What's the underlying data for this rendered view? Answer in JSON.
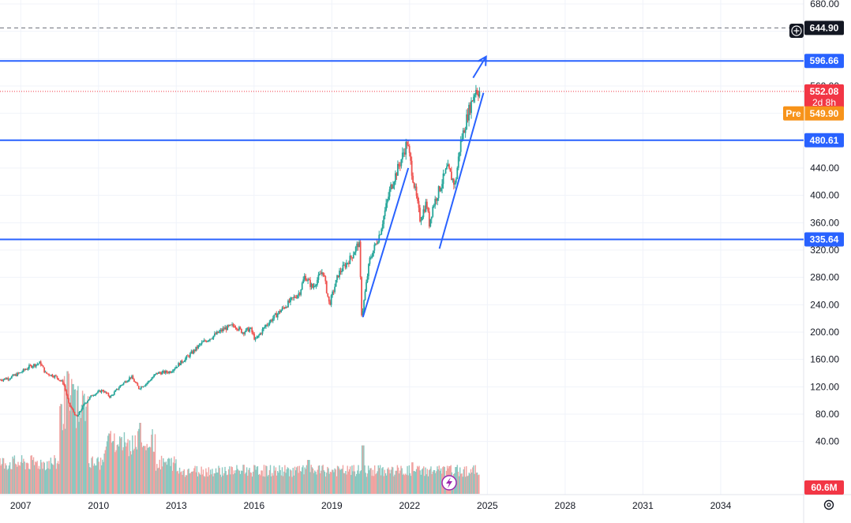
{
  "colors": {
    "up": "#26a69a",
    "down": "#ef5350",
    "vol_up": "#89c8c0",
    "vol_down": "#f0a3a1",
    "hline": "#2962ff",
    "grid": "#f0f3fa",
    "axis_text": "#131722",
    "last_price": "#f23645",
    "pre_price": "#f7931a",
    "crosshair_tag": "#131722",
    "lightning": "#9c27b0"
  },
  "chart_data": {
    "type": "candlestick",
    "title": "",
    "xlabel": "",
    "ylabel": "",
    "ylim": [
      -10,
      680
    ],
    "xlim": [
      2006.2,
      2037.2
    ],
    "x_ticks": [
      "2007",
      "2010",
      "2013",
      "2016",
      "2019",
      "2022",
      "2025",
      "2028",
      "2031",
      "2034"
    ],
    "x_tick_values": [
      2007,
      2010,
      2013,
      2016,
      2019,
      2022,
      2025,
      2028,
      2031,
      2034
    ],
    "y_ticks": [
      "40.00",
      "80.00",
      "120.00",
      "160.00",
      "200.00",
      "240.00",
      "280.00",
      "320.00",
      "360.00",
      "400.00",
      "440.00",
      "560.00",
      "680.00"
    ],
    "y_tick_values": [
      40,
      80,
      120,
      160,
      200,
      240,
      280,
      320,
      360,
      400,
      440,
      560,
      680
    ],
    "price_path": [
      [
        2006.2,
        130
      ],
      [
        2006.6,
        133
      ],
      [
        2007.0,
        140
      ],
      [
        2007.4,
        150
      ],
      [
        2007.8,
        155
      ],
      [
        2008.0,
        140
      ],
      [
        2008.4,
        135
      ],
      [
        2008.7,
        125
      ],
      [
        2008.9,
        95
      ],
      [
        2009.1,
        82
      ],
      [
        2009.2,
        75
      ],
      [
        2009.5,
        95
      ],
      [
        2009.8,
        108
      ],
      [
        2010.2,
        115
      ],
      [
        2010.5,
        105
      ],
      [
        2010.9,
        122
      ],
      [
        2011.3,
        135
      ],
      [
        2011.6,
        118
      ],
      [
        2011.9,
        125
      ],
      [
        2012.3,
        140
      ],
      [
        2012.8,
        142
      ],
      [
        2013.2,
        155
      ],
      [
        2013.6,
        168
      ],
      [
        2014.0,
        183
      ],
      [
        2014.5,
        195
      ],
      [
        2014.9,
        205
      ],
      [
        2015.3,
        210
      ],
      [
        2015.6,
        200
      ],
      [
        2015.9,
        205
      ],
      [
        2016.1,
        188
      ],
      [
        2016.5,
        210
      ],
      [
        2016.9,
        225
      ],
      [
        2017.3,
        240
      ],
      [
        2017.8,
        258
      ],
      [
        2018.0,
        282
      ],
      [
        2018.3,
        265
      ],
      [
        2018.7,
        290
      ],
      [
        2018.95,
        240
      ],
      [
        2019.3,
        285
      ],
      [
        2019.8,
        310
      ],
      [
        2020.1,
        332
      ],
      [
        2020.2,
        222
      ],
      [
        2020.5,
        305
      ],
      [
        2020.9,
        345
      ],
      [
        2021.3,
        410
      ],
      [
        2021.7,
        450
      ],
      [
        2021.95,
        478
      ],
      [
        2022.2,
        420
      ],
      [
        2022.45,
        365
      ],
      [
        2022.7,
        390
      ],
      [
        2022.8,
        358
      ],
      [
        2022.95,
        385
      ],
      [
        2023.2,
        410
      ],
      [
        2023.5,
        440
      ],
      [
        2023.8,
        415
      ],
      [
        2024.0,
        475
      ],
      [
        2024.3,
        520
      ],
      [
        2024.5,
        545
      ],
      [
        2024.6,
        556
      ],
      [
        2024.7,
        552
      ]
    ],
    "volume_peaks_millions": [
      {
        "x": 2008.8,
        "v": 190
      },
      {
        "x": 2009.0,
        "v": 170
      },
      {
        "x": 2010.4,
        "v": 90
      },
      {
        "x": 2011.6,
        "v": 110
      },
      {
        "x": 2015.6,
        "v": 60
      },
      {
        "x": 2018.1,
        "v": 70
      },
      {
        "x": 2020.2,
        "v": 100
      },
      {
        "x": 2022.1,
        "v": 65
      }
    ],
    "annotations": [
      {
        "type": "hline",
        "y": 596.66,
        "label": "596.66"
      },
      {
        "type": "hline",
        "y": 480.61,
        "label": "480.61"
      },
      {
        "type": "hline",
        "y": 335.64,
        "label": "335.64"
      },
      {
        "type": "trendline",
        "from": [
          2020.2,
          222
        ],
        "to": [
          2021.95,
          440
        ]
      },
      {
        "type": "trendline",
        "from": [
          2023.15,
          322
        ],
        "to": [
          2024.85,
          550
        ]
      },
      {
        "type": "arrow",
        "from": [
          2024.45,
          572
        ],
        "to": [
          2024.95,
          603
        ]
      }
    ],
    "price_tags": {
      "crosshair": "644.90",
      "crosshair_y": 644.9,
      "last": "552.08",
      "last_y": 552.08,
      "countdown": "2d 8h",
      "pre_label": "Pre",
      "pre_value": "549.90",
      "pre_y": 549.9,
      "volume": "60.6M"
    }
  }
}
